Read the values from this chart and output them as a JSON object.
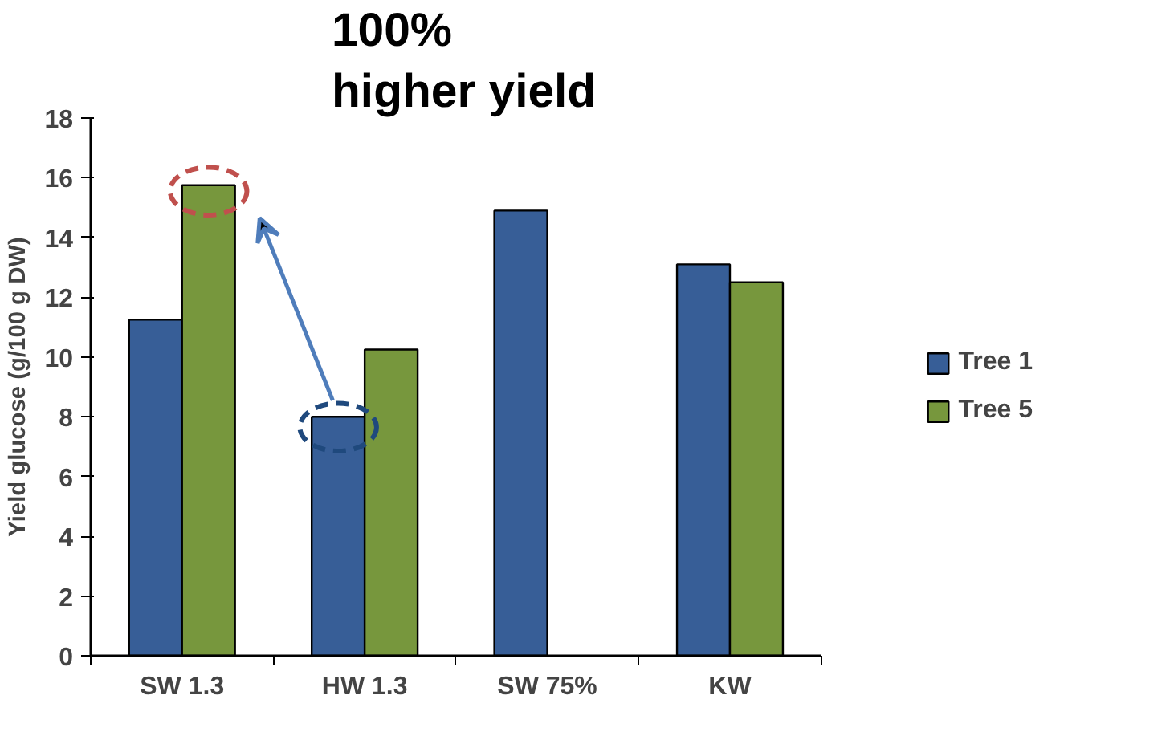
{
  "chart_data": {
    "type": "bar",
    "ylabel": "Yield glucose (g/100 g DW)",
    "categories": [
      "SW 1.3",
      "HW 1.3",
      "SW 75%",
      "KW"
    ],
    "series": [
      {
        "name": "Tree 1",
        "color": "#375e97",
        "values": [
          11.25,
          8.0,
          14.9,
          13.1
        ]
      },
      {
        "name": "Tree 5",
        "color": "#77973d",
        "values": [
          15.75,
          10.25,
          null,
          12.5
        ]
      }
    ],
    "ylim": [
      0,
      18
    ],
    "yticks": [
      0,
      2,
      4,
      6,
      8,
      10,
      12,
      14,
      16,
      18
    ],
    "grid": false,
    "legend": "right",
    "annotations": [
      "100%\nhigher yield"
    ]
  }
}
